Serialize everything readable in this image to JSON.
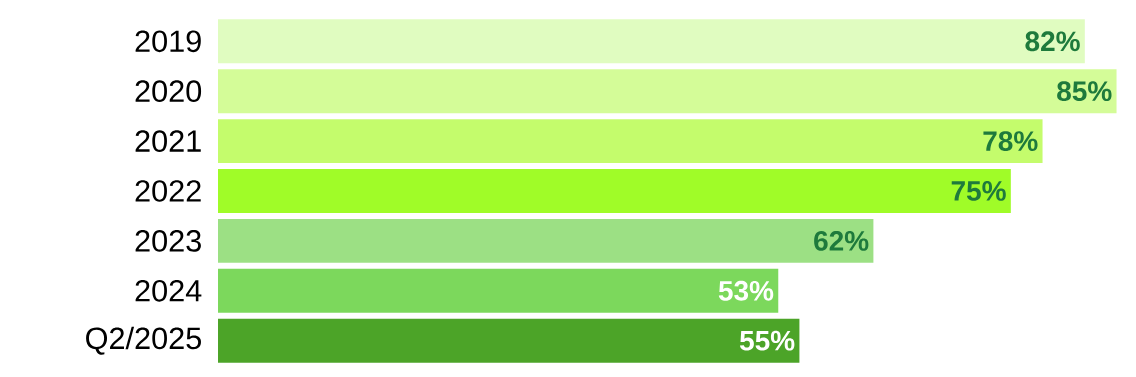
{
  "chart_data": {
    "type": "bar",
    "orientation": "horizontal",
    "categories": [
      "2019",
      "2020",
      "2021",
      "2022",
      "2023",
      "2024",
      "Q2/2025"
    ],
    "values": [
      82,
      85,
      78,
      75,
      62,
      53,
      55
    ],
    "value_labels": [
      "82%",
      "85%",
      "78%",
      "75%",
      "62%",
      "53%",
      "55%"
    ],
    "colors": [
      "#e0fcc0",
      "#d4fc98",
      "#c4fc6c",
      "#a0fc28",
      "#9ce084",
      "#7cd85c",
      "#4ca428"
    ]
  }
}
